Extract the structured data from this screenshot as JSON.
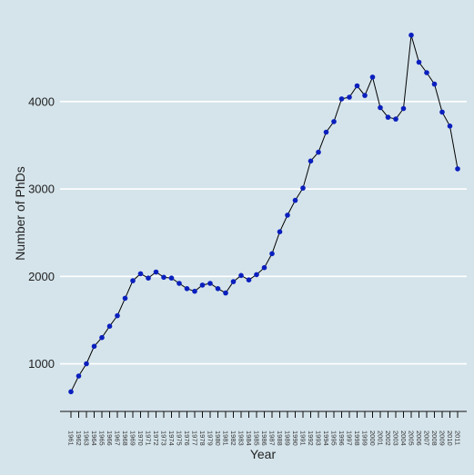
{
  "colors": {
    "background": "#d5e4eb",
    "gridline": "#ffffff",
    "line": "#000000",
    "marker": "#0a1fbe",
    "axis": "#111111"
  },
  "chart_data": {
    "type": "line",
    "title": "",
    "xlabel": "Year",
    "ylabel": "Number of PhDs",
    "grid": "horizontal",
    "legend": "none",
    "ylim": [
      455,
      4850
    ],
    "y_ticks": [
      1000,
      2000,
      3000,
      4000
    ],
    "x_ticks": [
      "1961",
      "1962",
      "1963",
      "1964",
      "1965",
      "1966",
      "1967",
      "1968",
      "1969",
      "1970",
      "1971",
      "1972",
      "1973",
      "1974",
      "1975",
      "1976",
      "1977",
      "1978",
      "1979",
      "1980",
      "1981",
      "1982",
      "1983",
      "1984",
      "1985",
      "1986",
      "1987",
      "1988",
      "1989",
      "1990",
      "1991",
      "1992",
      "1993",
      "1994",
      "1995",
      "1996",
      "1997",
      "1998",
      "1999",
      "2000",
      "2001",
      "2002",
      "2003",
      "2004",
      "2005",
      "2006",
      "2007",
      "2008",
      "2009",
      "2010",
      "2011"
    ],
    "series": [
      {
        "x": [
          1961,
          1962,
          1963,
          1964,
          1965,
          1966,
          1967,
          1968,
          1969,
          1970,
          1971,
          1972,
          1973,
          1974,
          1975,
          1976,
          1977,
          1978,
          1979,
          1980,
          1981,
          1982,
          1983,
          1984,
          1985,
          1986,
          1987,
          1988,
          1989,
          1990,
          1991,
          1992,
          1993,
          1994,
          1995,
          1996,
          1997,
          1998,
          1999,
          2000,
          2001,
          2002,
          2003,
          2004,
          2005,
          2006,
          2007,
          2008,
          2009,
          2010,
          2011
        ],
        "values": [
          680,
          860,
          1000,
          1200,
          1300,
          1430,
          1550,
          1750,
          1950,
          2030,
          1980,
          2050,
          1990,
          1980,
          1920,
          1860,
          1830,
          1900,
          1920,
          1860,
          1810,
          1940,
          2010,
          1960,
          2020,
          2100,
          2260,
          2510,
          2700,
          2870,
          3010,
          3320,
          3420,
          3650,
          3770,
          4030,
          4050,
          4180,
          4070,
          4280,
          3930,
          3820,
          3800,
          3920,
          4760,
          4450,
          4330,
          4200,
          3880,
          3720,
          3230
        ]
      }
    ]
  }
}
